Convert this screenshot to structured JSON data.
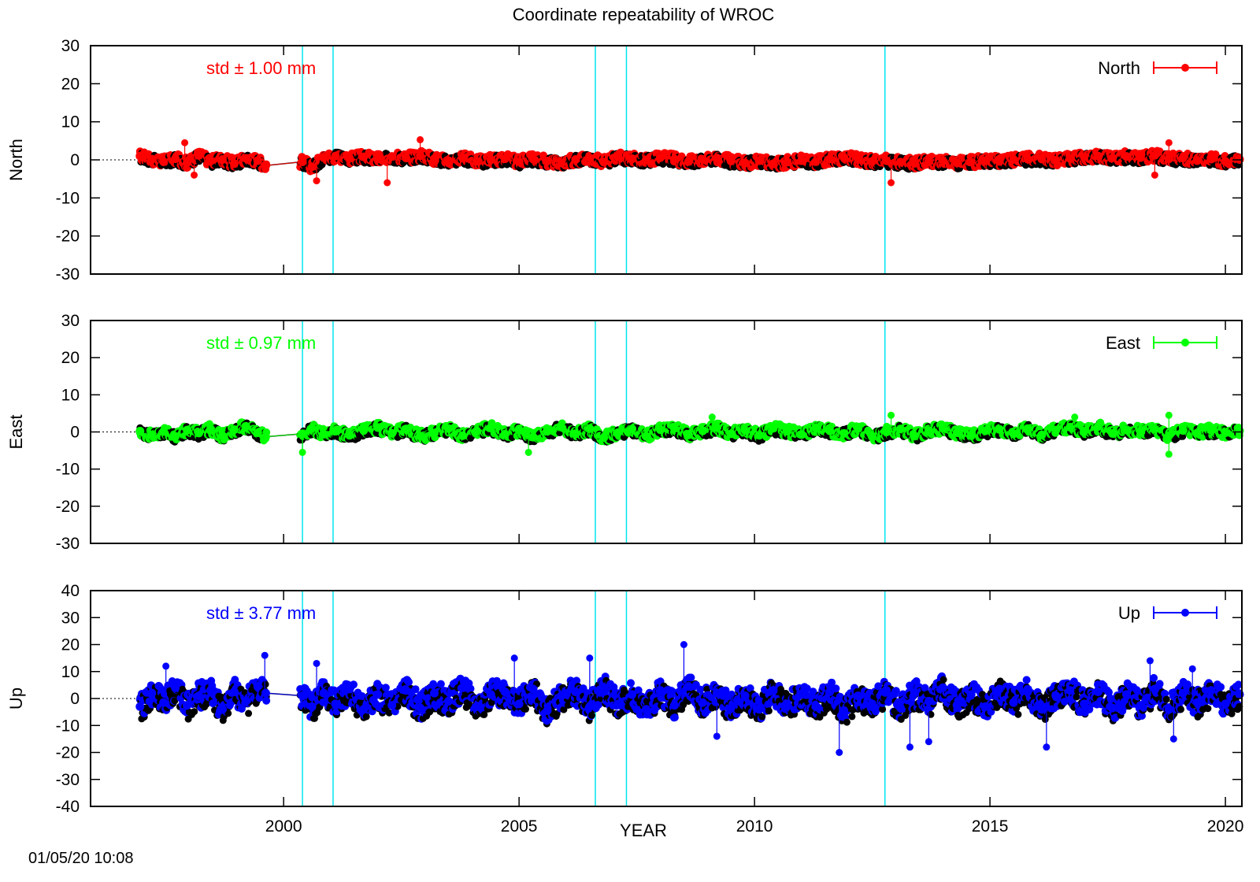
{
  "title": "Coordinate repeatability of WROC",
  "xlabel": "YEAR",
  "timestamp": "01/05/20 10:08",
  "colors": {
    "north": "#ff0000",
    "east": "#00ff00",
    "up": "#0000ff",
    "shadow": "#000000",
    "event": "#00e5ee"
  },
  "chart_data": [
    {
      "type": "scatter",
      "component": "north",
      "ylabel": "North",
      "legend_label": "North",
      "legend_position": "top-right",
      "std_label": "std ± 1.00 mm",
      "xlim": [
        1995.9,
        2020.35
      ],
      "ylim": [
        -30,
        30
      ],
      "yticks": [
        30,
        20,
        10,
        0,
        -10,
        -20,
        -30
      ],
      "xticks": [
        2000,
        2005,
        2010,
        2015,
        2020
      ],
      "series": [
        {
          "name": "North",
          "x": [
            1996.95,
            1997.2,
            1997.45,
            1997.7,
            1997.95,
            1998.2,
            1998.45,
            1998.7,
            1998.95,
            1999.2,
            1999.45,
            1999.62,
            2000.4,
            2000.6,
            2000.85,
            2001.1,
            2001.4,
            2001.7,
            2002.0,
            2002.3,
            2002.6,
            2002.9,
            2003.2,
            2003.5,
            2003.8,
            2004.1,
            2004.4,
            2004.7,
            2005.0,
            2005.3,
            2005.6,
            2005.9,
            2006.2,
            2006.5,
            2006.8,
            2007.1,
            2007.4,
            2007.7,
            2008.0,
            2008.3,
            2008.6,
            2008.9,
            2009.2,
            2009.5,
            2009.8,
            2010.1,
            2010.4,
            2010.7,
            2011.0,
            2011.3,
            2011.6,
            2011.9,
            2012.2,
            2012.5,
            2012.8,
            2013.1,
            2013.4,
            2013.7,
            2014.0,
            2014.3,
            2014.6,
            2014.9,
            2015.2,
            2015.5,
            2015.8,
            2016.1,
            2016.4,
            2016.7,
            2017.0,
            2017.3,
            2017.6,
            2017.9,
            2018.2,
            2018.5,
            2018.8,
            2019.1,
            2019.4,
            2019.7,
            2020.0,
            2020.3
          ],
          "y": [
            1.0,
            0.2,
            -0.5,
            0.3,
            -0.8,
            1.2,
            -0.3,
            0.1,
            -1.0,
            0.4,
            -0.2,
            -1.5,
            -0.5,
            -1.8,
            0.6,
            1.0,
            0.4,
            0.8,
            0.2,
            0.9,
            0.5,
            1.1,
            0.3,
            -0.2,
            0.5,
            -0.4,
            0.0,
            0.3,
            -0.5,
            0.2,
            -0.3,
            -0.8,
            0.1,
            0.5,
            -0.6,
            0.8,
            0.3,
            0.0,
            0.6,
            0.2,
            -0.4,
            0.1,
            0.5,
            -0.3,
            -0.8,
            -0.2,
            -1.0,
            -0.6,
            -0.2,
            -0.5,
            0.3,
            0.6,
            0.1,
            -0.4,
            -0.2,
            -0.6,
            -0.9,
            -0.5,
            -0.3,
            -0.8,
            -0.6,
            -0.2,
            -0.4,
            0.1,
            0.3,
            0.2,
            -0.1,
            0.4,
            0.8,
            1.0,
            0.5,
            0.9,
            0.6,
            1.2,
            0.3,
            0.5,
            -0.2,
            0.2,
            -0.4,
            0.1
          ]
        }
      ],
      "outliers": [
        {
          "x": 1997.9,
          "y": 4.5
        },
        {
          "x": 1998.1,
          "y": -4.0
        },
        {
          "x": 2000.7,
          "y": -5.5
        },
        {
          "x": 2002.2,
          "y": -6.0
        },
        {
          "x": 2002.9,
          "y": 5.3
        },
        {
          "x": 2012.9,
          "y": -6.0
        },
        {
          "x": 2018.8,
          "y": 4.5
        },
        {
          "x": 2018.5,
          "y": -4.0
        }
      ]
    },
    {
      "type": "scatter",
      "component": "east",
      "ylabel": "East",
      "legend_label": "East",
      "legend_position": "top-right",
      "std_label": "std ± 0.97 mm",
      "xlim": [
        1995.9,
        2020.35
      ],
      "ylim": [
        -30,
        30
      ],
      "yticks": [
        30,
        20,
        10,
        0,
        -10,
        -20,
        -30
      ],
      "xticks": [
        2000,
        2005,
        2010,
        2015,
        2020
      ],
      "series": [
        {
          "name": "East",
          "x": [
            1996.95,
            1997.2,
            1997.45,
            1997.7,
            1997.95,
            1998.2,
            1998.45,
            1998.7,
            1998.95,
            1999.2,
            1999.45,
            1999.62,
            2000.4,
            2000.6,
            2000.85,
            2001.1,
            2001.4,
            2001.7,
            2002.0,
            2002.3,
            2002.6,
            2002.9,
            2003.2,
            2003.5,
            2003.8,
            2004.1,
            2004.4,
            2004.7,
            2005.0,
            2005.3,
            2005.6,
            2005.9,
            2006.2,
            2006.5,
            2006.8,
            2007.1,
            2007.4,
            2007.7,
            2008.0,
            2008.3,
            2008.6,
            2008.9,
            2009.2,
            2009.5,
            2009.8,
            2010.1,
            2010.4,
            2010.7,
            2011.0,
            2011.3,
            2011.6,
            2011.9,
            2012.2,
            2012.5,
            2012.8,
            2013.1,
            2013.4,
            2013.7,
            2014.0,
            2014.3,
            2014.6,
            2014.9,
            2015.2,
            2015.5,
            2015.8,
            2016.1,
            2016.4,
            2016.7,
            2017.0,
            2017.3,
            2017.6,
            2017.9,
            2018.2,
            2018.5,
            2018.8,
            2019.1,
            2019.4,
            2019.7,
            2020.0,
            2020.3
          ],
          "y": [
            0.2,
            -0.8,
            0.1,
            -1.2,
            0.5,
            -0.3,
            0.8,
            -1.0,
            0.6,
            1.5,
            -0.2,
            -1.3,
            -0.5,
            1.0,
            -0.6,
            0.2,
            -0.9,
            0.4,
            1.2,
            -0.4,
            0.8,
            -1.1,
            -0.3,
            0.9,
            -1.0,
            0.3,
            1.1,
            -0.6,
            0.5,
            -1.4,
            0.2,
            1.3,
            -0.5,
            0.9,
            -1.5,
            -0.2,
            0.8,
            -1.2,
            0.6,
            1.0,
            -0.8,
            0.3,
            1.2,
            -0.5,
            0.4,
            -0.9,
            1.0,
            0.2,
            -0.7,
            1.1,
            0.3,
            -0.4,
            0.9,
            -1.3,
            0.0,
            0.8,
            -1.1,
            0.4,
            1.0,
            -0.2,
            -1.0,
            0.3,
            0.7,
            -0.5,
            0.9,
            -0.8,
            0.5,
            1.3,
            0.2,
            1.5,
            -0.4,
            0.6,
            0.2,
            0.8,
            -1.0,
            0.4,
            -0.3,
            0.5,
            -0.2,
            0.3
          ]
        }
      ],
      "outliers": [
        {
          "x": 2000.4,
          "y": -5.5
        },
        {
          "x": 2005.2,
          "y": -5.5
        },
        {
          "x": 2009.1,
          "y": 4.0
        },
        {
          "x": 2012.9,
          "y": 4.5
        },
        {
          "x": 2016.8,
          "y": 4.0
        },
        {
          "x": 2018.8,
          "y": 4.5
        },
        {
          "x": 2018.8,
          "y": -6.0
        }
      ]
    },
    {
      "type": "scatter",
      "component": "up",
      "ylabel": "Up",
      "legend_label": "Up",
      "legend_position": "top-right",
      "std_label": "std ± 3.77 mm",
      "xlim": [
        1995.9,
        2020.35
      ],
      "ylim": [
        -40,
        40
      ],
      "yticks": [
        40,
        30,
        20,
        10,
        0,
        -10,
        -20,
        -30,
        -40
      ],
      "xticks": [
        2000,
        2005,
        2010,
        2015,
        2020
      ],
      "series": [
        {
          "name": "Up",
          "x": [
            1996.95,
            1997.2,
            1997.45,
            1997.7,
            1997.95,
            1998.2,
            1998.45,
            1998.7,
            1998.95,
            1999.2,
            1999.45,
            1999.62,
            2000.4,
            2000.6,
            2000.85,
            2001.1,
            2001.4,
            2001.7,
            2002.0,
            2002.3,
            2002.6,
            2002.9,
            2003.2,
            2003.5,
            2003.8,
            2004.1,
            2004.4,
            2004.7,
            2005.0,
            2005.3,
            2005.6,
            2005.9,
            2006.2,
            2006.5,
            2006.8,
            2007.1,
            2007.4,
            2007.7,
            2008.0,
            2008.3,
            2008.6,
            2008.9,
            2009.2,
            2009.5,
            2009.8,
            2010.1,
            2010.4,
            2010.7,
            2011.0,
            2011.3,
            2011.6,
            2011.9,
            2012.2,
            2012.5,
            2012.8,
            2013.1,
            2013.4,
            2013.7,
            2014.0,
            2014.3,
            2014.6,
            2014.9,
            2015.2,
            2015.5,
            2015.8,
            2016.1,
            2016.4,
            2016.7,
            2017.0,
            2017.3,
            2017.6,
            2017.9,
            2018.2,
            2018.5,
            2018.8,
            2019.1,
            2019.4,
            2019.7,
            2020.0,
            2020.3
          ],
          "y": [
            -3.0,
            2.0,
            -1.5,
            4.0,
            -2.5,
            1.0,
            3.0,
            -4.0,
            2.5,
            -1.0,
            4.5,
            2.0,
            1.0,
            -3.0,
            2.0,
            -2.0,
            3.5,
            -4.0,
            1.5,
            -2.5,
            3.0,
            -3.5,
            2.0,
            -1.0,
            4.0,
            -3.0,
            1.5,
            2.5,
            -2.0,
            3.5,
            -4.5,
            1.0,
            2.5,
            -3.0,
            4.0,
            -2.0,
            1.5,
            -4.0,
            3.0,
            -2.5,
            4.5,
            -1.5,
            2.0,
            -3.5,
            1.0,
            -4.0,
            3.0,
            -2.5,
            1.5,
            -3.0,
            2.5,
            -4.5,
            1.0,
            -2.0,
            3.0,
            -3.5,
            2.0,
            -1.0,
            4.0,
            -2.5,
            1.5,
            -3.0,
            3.5,
            -1.5,
            2.5,
            -4.0,
            1.0,
            3.0,
            -2.0,
            2.5,
            -3.5,
            1.5,
            -2.5,
            3.5,
            -4.0,
            2.0,
            -1.5,
            3.0,
            -2.0,
            1.5
          ]
        }
      ],
      "outliers": [
        {
          "x": 1997.5,
          "y": 12
        },
        {
          "x": 1999.6,
          "y": 16
        },
        {
          "x": 2000.7,
          "y": 13
        },
        {
          "x": 2004.9,
          "y": 15
        },
        {
          "x": 2006.5,
          "y": 15
        },
        {
          "x": 2008.5,
          "y": 20
        },
        {
          "x": 2009.2,
          "y": -14
        },
        {
          "x": 2011.8,
          "y": -20
        },
        {
          "x": 2013.3,
          "y": -18
        },
        {
          "x": 2013.7,
          "y": -16
        },
        {
          "x": 2016.2,
          "y": -18
        },
        {
          "x": 2018.4,
          "y": 14
        },
        {
          "x": 2018.9,
          "y": -15
        },
        {
          "x": 2019.3,
          "y": 11
        }
      ]
    }
  ],
  "event_lines": [
    2000.4,
    2001.05,
    2006.62,
    2007.28,
    2012.77
  ]
}
